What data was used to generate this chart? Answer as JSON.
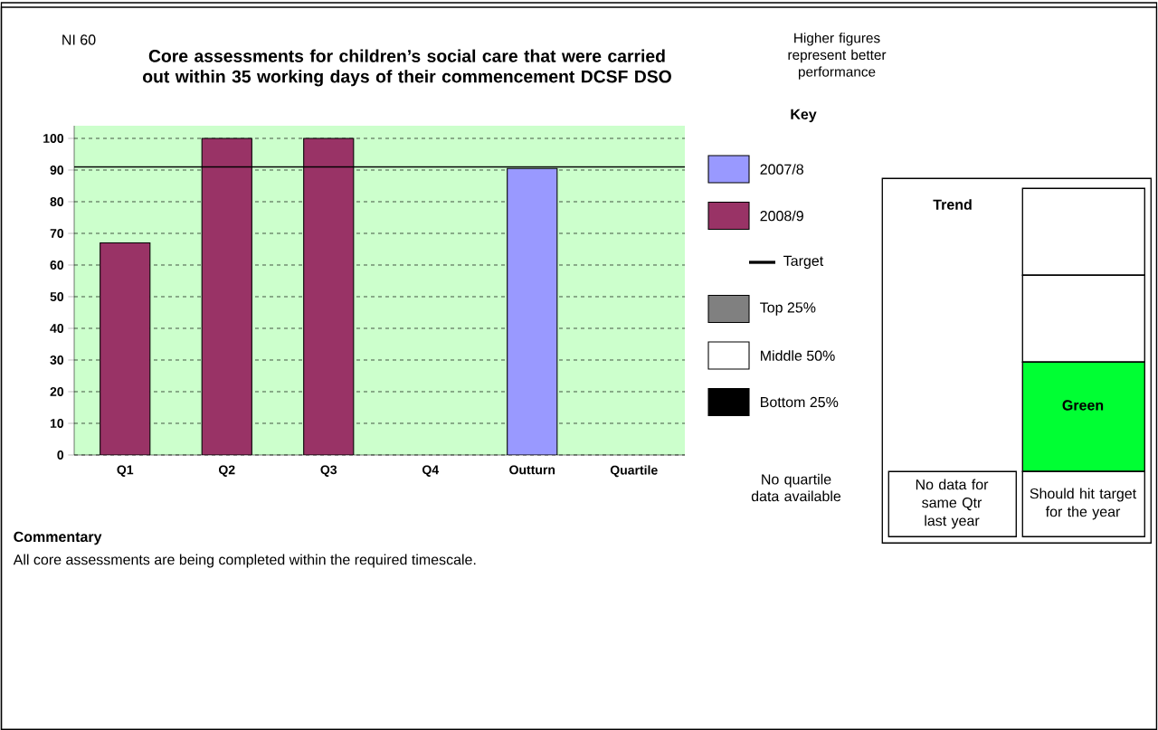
{
  "chart_data": {
    "type": "bar",
    "title": "Core assessments for children’s social care that were carried out within 35 working days of their commencement DCSF DSO",
    "categories": [
      "Q1",
      "Q2",
      "Q3",
      "Q4",
      "Outturn",
      "Quartile"
    ],
    "series": [
      {
        "name": "2007/8",
        "color": "#9999ff",
        "values": [
          null,
          null,
          null,
          null,
          90.5,
          null
        ]
      },
      {
        "name": "2008/9",
        "color": "#993366",
        "values": [
          67,
          100,
          100,
          null,
          null,
          null
        ]
      },
      {
        "name": "Top 25%",
        "color": "#808080",
        "values": [
          null,
          null,
          null,
          null,
          null,
          null
        ]
      },
      {
        "name": "Middle 50%",
        "color": "#ffffff",
        "values": [
          null,
          null,
          null,
          null,
          null,
          null
        ]
      },
      {
        "name": "Bottom 25%",
        "color": "#000000",
        "values": [
          null,
          null,
          null,
          null,
          null,
          null
        ]
      }
    ],
    "ylim": [
      0,
      104
    ],
    "yticks": [
      0,
      10,
      20,
      30,
      40,
      50,
      60,
      70,
      80,
      90,
      100
    ],
    "grid": "y",
    "legend": "right",
    "legend_title": "Key",
    "ref_lines": [
      {
        "axis": "y",
        "value": 91,
        "label": "Target",
        "color": "#000000"
      }
    ],
    "annotations": [
      "NI 60",
      "Higher figures represent better performance",
      "No quartile data available",
      "Commentary",
      "All core assessments are being completed within the required timescale.",
      "Trend",
      "Green",
      "No data for same Qtr last year",
      "Should hit target for the year"
    ]
  }
}
